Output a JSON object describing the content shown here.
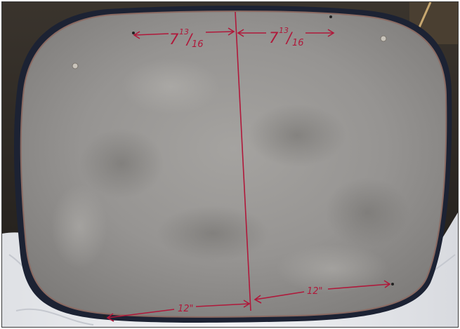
{
  "photo": {
    "subject": "",
    "annotations": {
      "top_left": {
        "whole": "7",
        "numerator": "13",
        "denominator": "16"
      },
      "top_right": {
        "whole": "7",
        "numerator": "13",
        "denominator": "16"
      },
      "bottom_left": "12\"",
      "bottom_right": "12\""
    },
    "colors": {
      "marker": "#b0183a",
      "metal": "#9a9896",
      "bead": "#1c2233",
      "background": "#2a2622",
      "plastic": "#e6e7ea"
    }
  }
}
